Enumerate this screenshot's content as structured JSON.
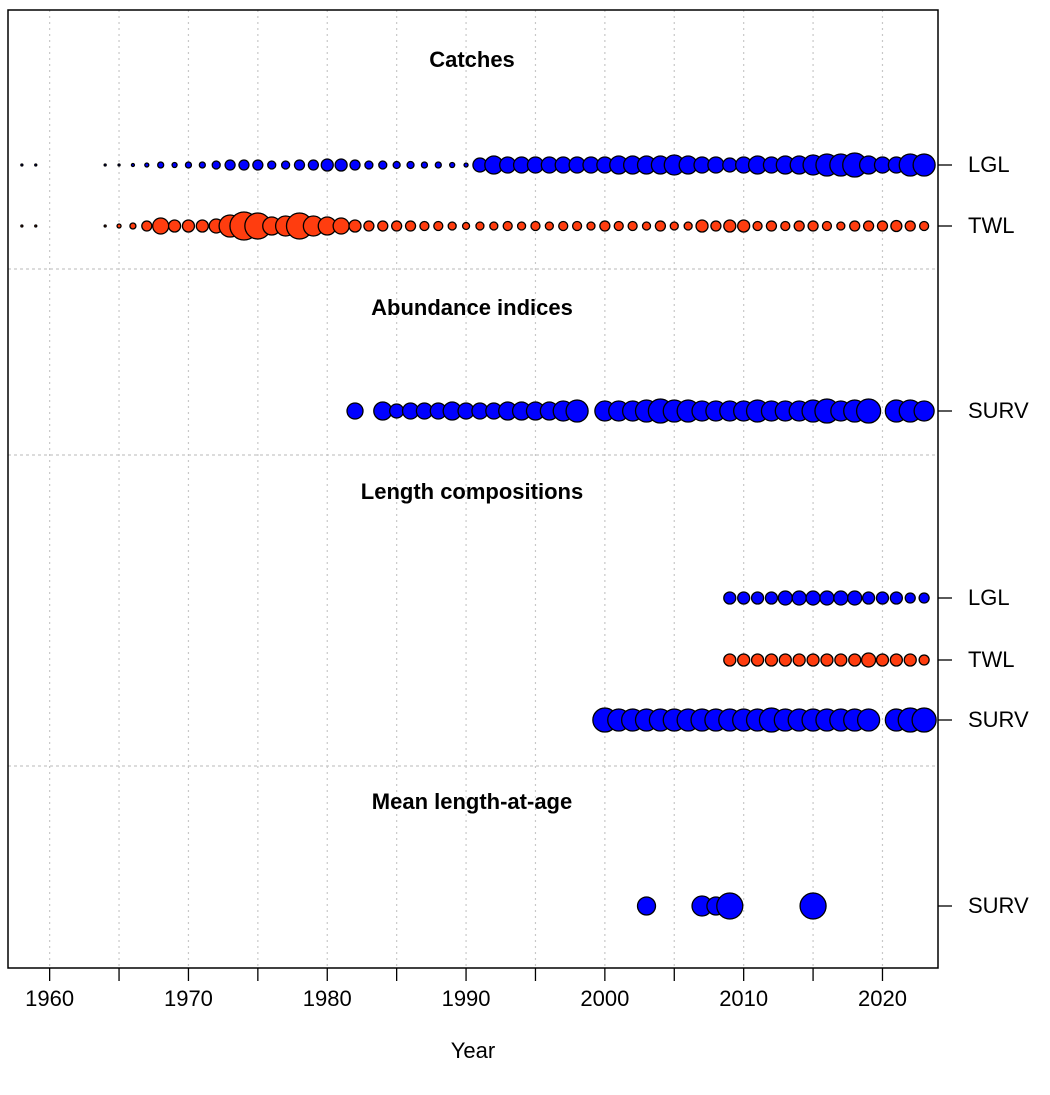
{
  "chart_data": {
    "type": "bubble",
    "x_label": "Year",
    "xlim": [
      1957,
      2024
    ],
    "xticks": [
      1960,
      1970,
      1980,
      1990,
      2000,
      2010,
      2020
    ],
    "xminor_ticks": [
      1965,
      1975,
      1985,
      1995,
      2005,
      2015
    ],
    "grid": true,
    "sections": [
      {
        "title": "Catches",
        "rows": [
          {
            "name": "LGL",
            "color": "#0000ff",
            "x": [
              1958,
              1959,
              1964,
              1965,
              1966,
              1967,
              1968,
              1969,
              1970,
              1971,
              1972,
              1973,
              1974,
              1975,
              1976,
              1977,
              1978,
              1979,
              1980,
              1981,
              1982,
              1983,
              1984,
              1985,
              1986,
              1987,
              1988,
              1989,
              1990,
              1991,
              1992,
              1993,
              1994,
              1995,
              1996,
              1997,
              1998,
              1999,
              2000,
              2001,
              2002,
              2003,
              2004,
              2005,
              2006,
              2007,
              2008,
              2009,
              2010,
              2011,
              2012,
              2013,
              2014,
              2015,
              2016,
              2017,
              2018,
              2019,
              2020,
              2021,
              2022,
              2023
            ],
            "sizes": [
              1,
              1,
              1,
              1,
              1.5,
              2,
              3,
              2.5,
              3,
              3,
              4,
              5,
              5,
              5,
              4,
              4,
              5,
              5,
              6,
              6,
              5,
              4,
              4,
              3.5,
              3.5,
              3,
              3,
              2.5,
              2,
              7,
              9,
              8,
              8,
              8,
              8,
              8,
              8,
              8,
              8,
              9,
              9,
              9,
              9,
              10,
              9,
              8,
              8,
              7,
              8,
              9,
              8,
              9,
              9,
              10,
              11,
              11,
              12,
              9,
              8,
              8,
              11,
              11
            ]
          },
          {
            "name": "TWL",
            "color": "#ff3d0f",
            "x": [
              1958,
              1959,
              1964,
              1965,
              1966,
              1967,
              1968,
              1969,
              1970,
              1971,
              1972,
              1973,
              1974,
              1975,
              1976,
              1977,
              1978,
              1979,
              1980,
              1981,
              1982,
              1983,
              1984,
              1985,
              1986,
              1987,
              1988,
              1989,
              1990,
              1991,
              1992,
              1993,
              1994,
              1995,
              1996,
              1997,
              1998,
              1999,
              2000,
              2001,
              2002,
              2003,
              2004,
              2005,
              2006,
              2007,
              2008,
              2009,
              2010,
              2011,
              2012,
              2013,
              2014,
              2015,
              2016,
              2017,
              2018,
              2019,
              2020,
              2021,
              2022,
              2023
            ],
            "sizes": [
              1,
              1,
              1,
              2,
              3,
              5,
              8,
              6,
              6,
              6,
              7,
              11,
              14,
              13,
              9,
              10,
              13,
              10,
              9,
              8,
              6,
              5,
              5,
              5,
              5,
              4.5,
              4.5,
              4,
              3.5,
              4,
              4,
              4.5,
              4,
              4.5,
              4,
              4.5,
              4.5,
              4,
              5,
              4.5,
              4.5,
              4,
              5,
              4,
              4,
              6,
              5,
              6,
              6,
              4.5,
              5,
              4.5,
              5,
              5,
              4.5,
              4,
              5,
              5,
              5,
              5.5,
              5,
              4.5
            ]
          }
        ]
      },
      {
        "title": "Abundance indices",
        "rows": [
          {
            "name": "SURV",
            "color": "#0000ff",
            "x": [
              1982,
              1984,
              1985,
              1986,
              1987,
              1988,
              1989,
              1990,
              1991,
              1992,
              1993,
              1994,
              1995,
              1996,
              1997,
              1998,
              2000,
              2001,
              2002,
              2003,
              2004,
              2005,
              2006,
              2007,
              2008,
              2009,
              2010,
              2011,
              2012,
              2013,
              2014,
              2015,
              2016,
              2017,
              2018,
              2019,
              2021,
              2022,
              2023
            ],
            "sizes": [
              8,
              9,
              7,
              8,
              8,
              8,
              9,
              8,
              8,
              8,
              9,
              9,
              9,
              9,
              10,
              11,
              10,
              10,
              10,
              11,
              12,
              11,
              11,
              10,
              10,
              10,
              10,
              11,
              10,
              10,
              10,
              11,
              12,
              10,
              11,
              12,
              11,
              11,
              10
            ]
          }
        ]
      },
      {
        "title": "Length compositions",
        "rows": [
          {
            "name": "LGL",
            "color": "#0000ff",
            "x": [
              2009,
              2010,
              2011,
              2012,
              2013,
              2014,
              2015,
              2016,
              2017,
              2018,
              2019,
              2020,
              2021,
              2022,
              2023
            ],
            "sizes": [
              6,
              6,
              6,
              6,
              7,
              7,
              7,
              7,
              7,
              7,
              6,
              6,
              6,
              5,
              5
            ]
          },
          {
            "name": "TWL",
            "color": "#ff3d0f",
            "x": [
              2009,
              2010,
              2011,
              2012,
              2013,
              2014,
              2015,
              2016,
              2017,
              2018,
              2019,
              2020,
              2021,
              2022,
              2023
            ],
            "sizes": [
              6,
              6,
              6,
              6,
              6,
              6,
              6,
              6,
              6,
              6,
              7,
              6,
              6,
              6,
              5
            ]
          },
          {
            "name": "SURV",
            "color": "#0000ff",
            "x": [
              2000,
              2001,
              2002,
              2003,
              2004,
              2005,
              2006,
              2007,
              2008,
              2009,
              2010,
              2011,
              2012,
              2013,
              2014,
              2015,
              2016,
              2017,
              2018,
              2019,
              2021,
              2022,
              2023
            ],
            "sizes": [
              12,
              11,
              11,
              11,
              11,
              11,
              11,
              11,
              11,
              11,
              11,
              11,
              12,
              11,
              11,
              11,
              11,
              11,
              11,
              11,
              11,
              12,
              12
            ]
          }
        ]
      },
      {
        "title": "Mean length-at-age",
        "rows": [
          {
            "name": "SURV",
            "color": "#0000ff",
            "x": [
              2003,
              2007,
              2008,
              2009,
              2015
            ],
            "sizes": [
              9,
              10,
              9,
              13,
              13
            ]
          }
        ]
      }
    ]
  }
}
